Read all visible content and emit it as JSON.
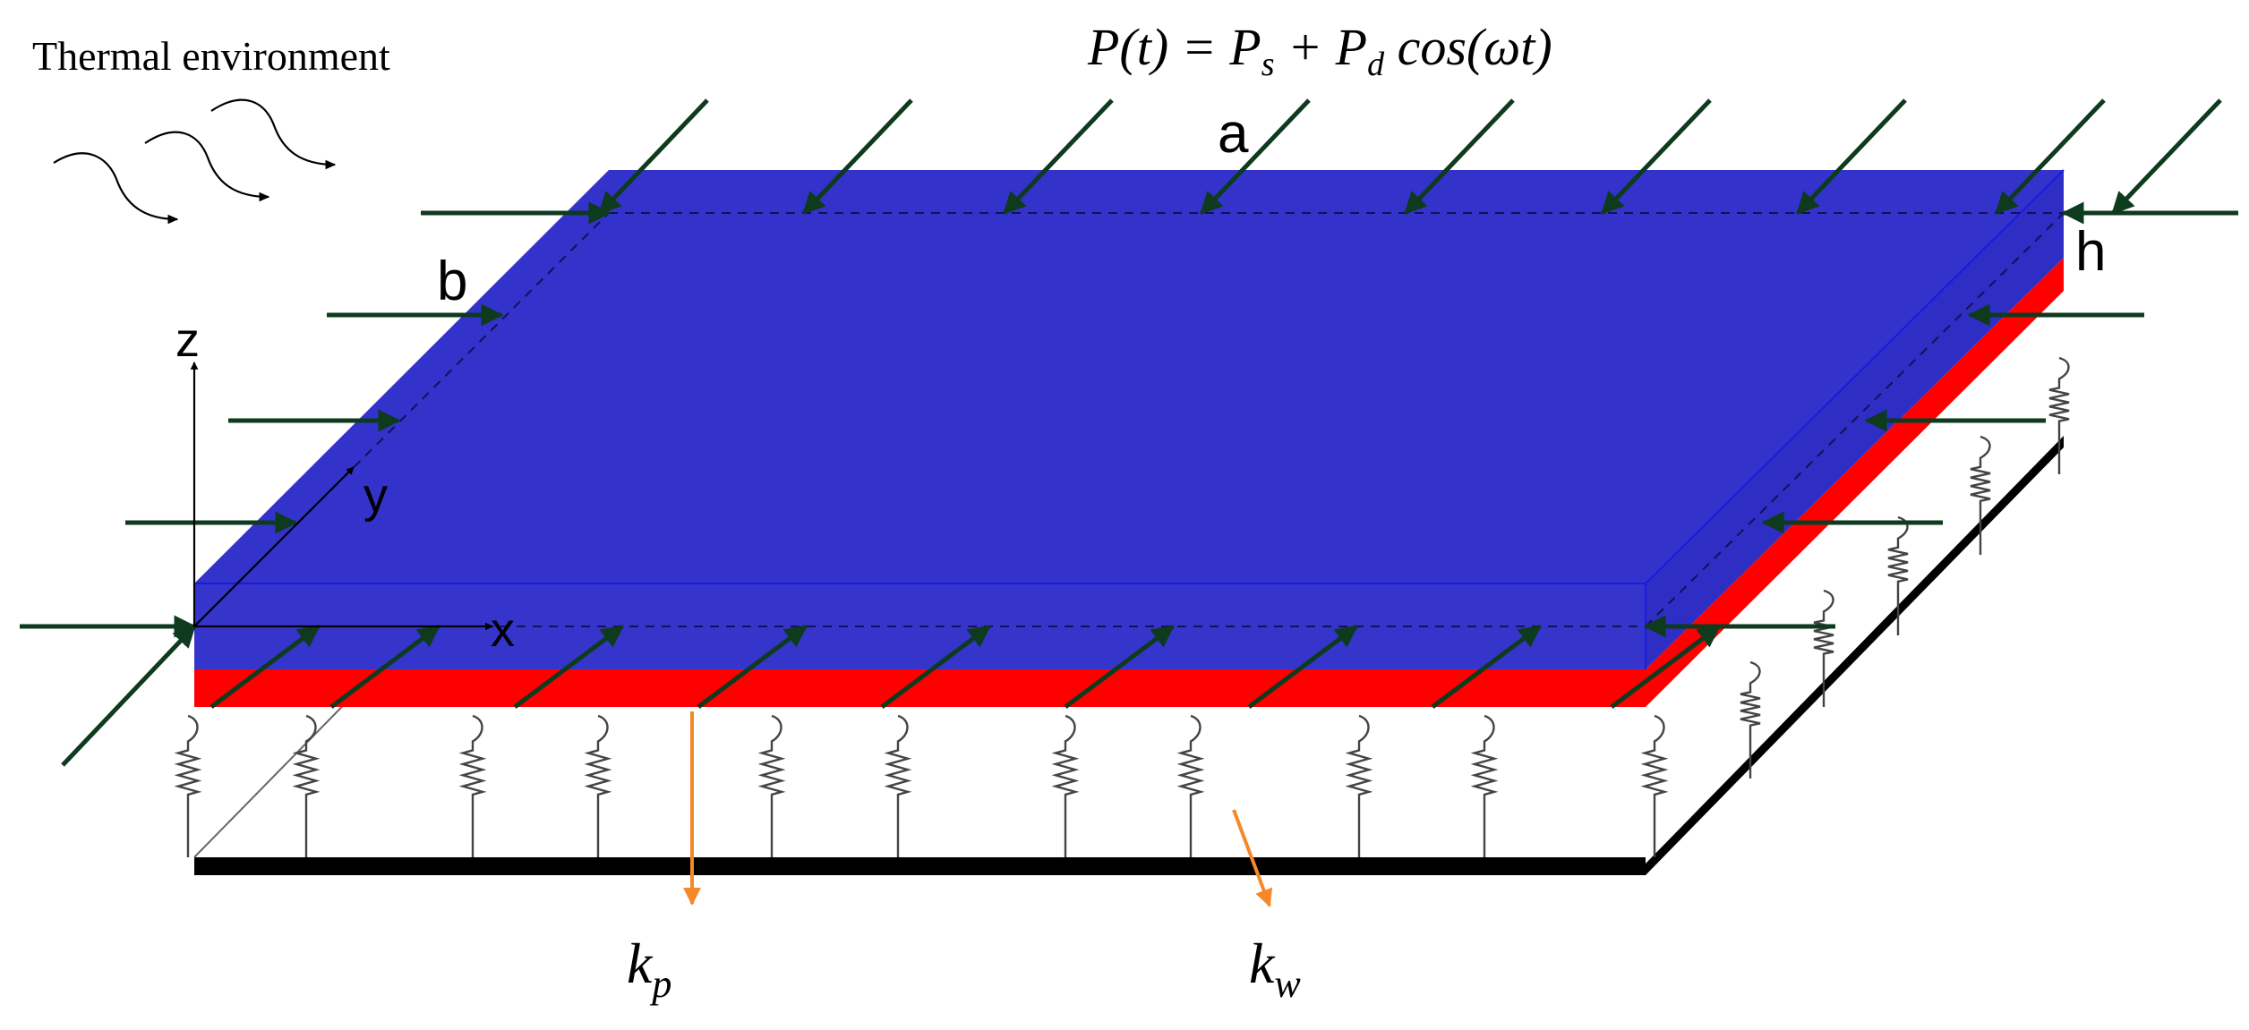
{
  "labels": {
    "environment": "Thermal environment",
    "load": {
      "lhs": "P(t) = P",
      "s_sub": "s",
      "plus": " + P",
      "d_sub": "d",
      "cos": " cos(ωt)"
    },
    "a": "a",
    "b": "b",
    "h": "h",
    "z": "z",
    "y": "y",
    "x": "x",
    "kp": "k",
    "kp_sub": "p",
    "kw": "k",
    "kw_sub": "w"
  },
  "colors": {
    "plate_top": "#3333CC",
    "plate_front": "#3535CC",
    "plate_side": "#2E2EC4",
    "core_layer": "#FF0000",
    "base": "#000000",
    "load_arrow": "#0E3A1E",
    "foundation_arrow": "#F5892A"
  }
}
